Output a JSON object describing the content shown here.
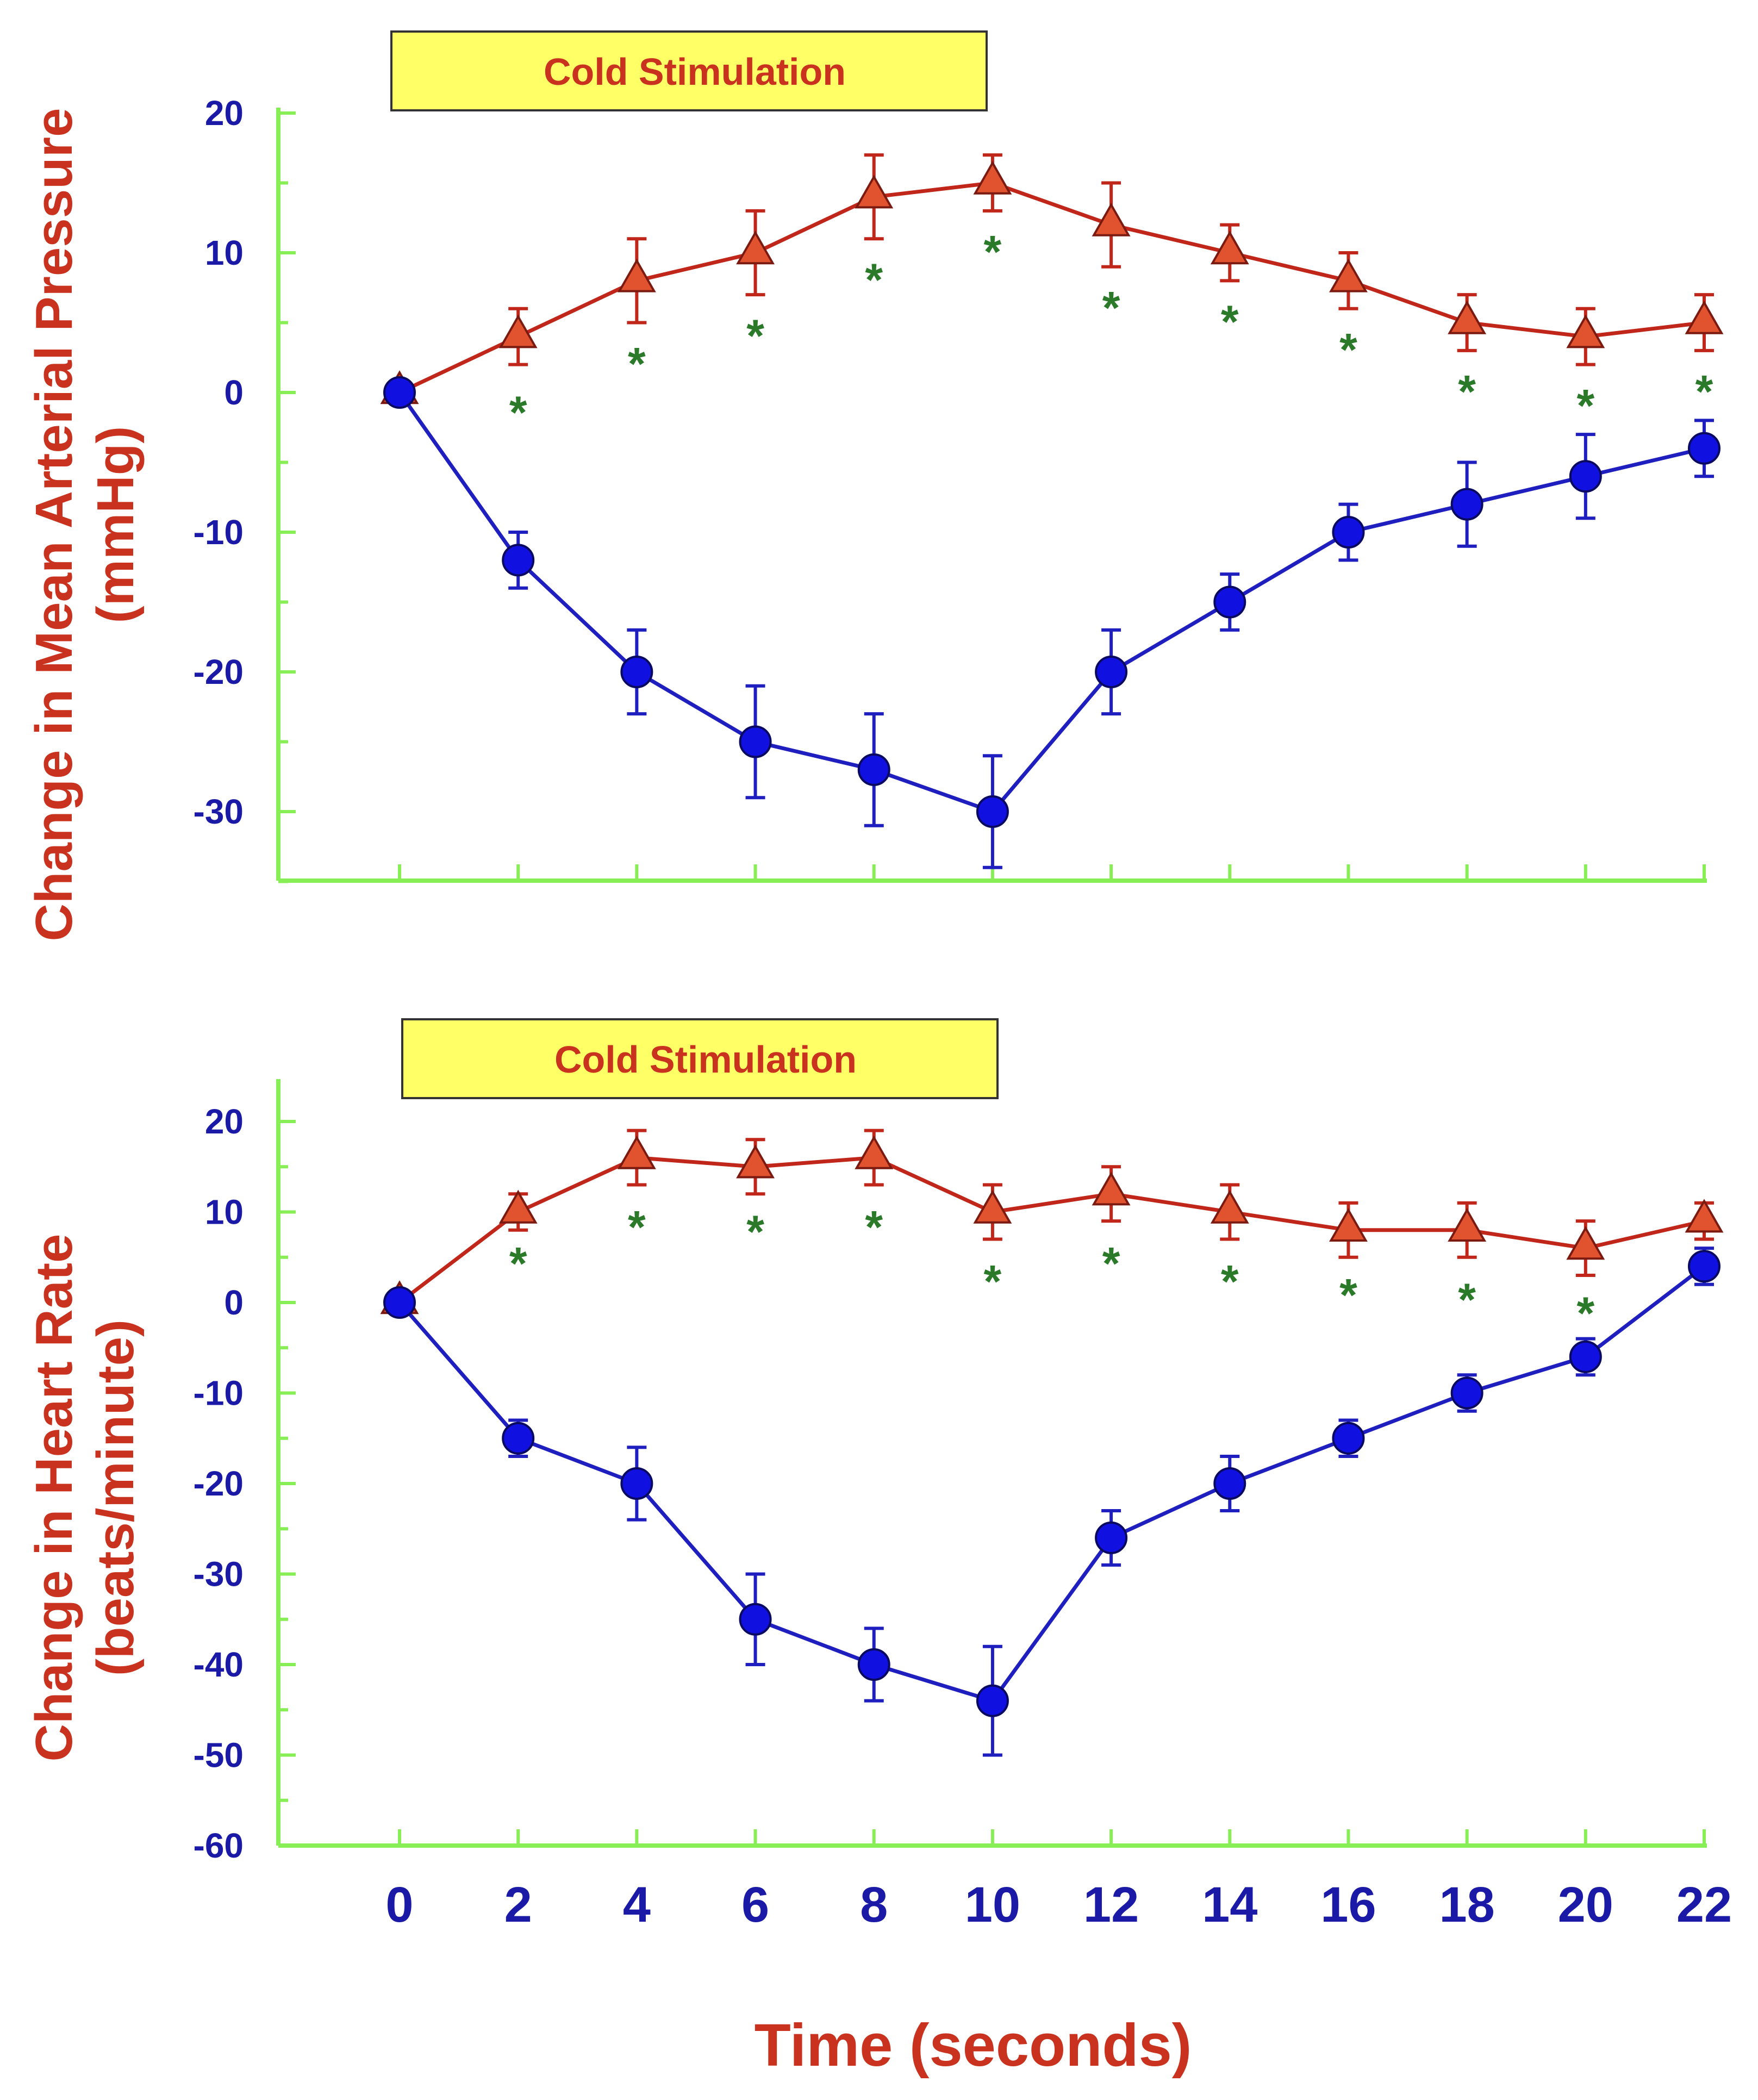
{
  "colors": {
    "axis": "#88ee55",
    "tick_label": "#1a1aa6",
    "y_title": "#c8321e",
    "x_title": "#c8321e",
    "triangle_line": "#c0261a",
    "triangle_fill": "#e0532e",
    "circle_line": "#1f1fbf",
    "circle_fill": "#1010e0",
    "asterisk": "#2a7a2a",
    "box_fill": "#ffff66",
    "box_text": "#c8321e"
  },
  "x_axis": {
    "title": "Time (seconds)",
    "ticks": [
      0,
      2,
      4,
      6,
      8,
      10,
      12,
      14,
      16,
      18,
      20,
      22
    ],
    "tick_labels": [
      "0",
      "2",
      "4",
      "6",
      "8",
      "10",
      "12",
      "14",
      "16",
      "18",
      "20",
      "22"
    ]
  },
  "chart_data": [
    {
      "type": "line",
      "title": "",
      "annotation": "Cold Stimulation",
      "ylabel_line1": "Change in Mean Arterial Pressure",
      "ylabel_line2": "(mmHg)",
      "xlabel": "Time (seconds)",
      "ylim": [
        -35,
        20
      ],
      "xlim": [
        -2,
        22
      ],
      "yticks": [
        20,
        10,
        0,
        -10,
        -20,
        -30
      ],
      "ytick_labels": [
        "20",
        "10",
        "0",
        "-10",
        "-20",
        "-30"
      ],
      "grid": false,
      "x": [
        0,
        2,
        4,
        6,
        8,
        10,
        12,
        14,
        16,
        18,
        20,
        22
      ],
      "series": [
        {
          "name": "triangle",
          "marker": "triangle",
          "values": [
            0,
            4,
            8,
            10,
            14,
            15,
            12,
            10,
            8,
            5,
            4,
            5
          ],
          "errors": [
            0,
            2,
            3,
            3,
            3,
            2,
            3,
            2,
            2,
            2,
            2,
            2
          ]
        },
        {
          "name": "circle",
          "marker": "circle",
          "values": [
            0,
            -12,
            -20,
            -25,
            -27,
            -30,
            -20,
            -15,
            -10,
            -8,
            -6,
            -4
          ],
          "errors": [
            0,
            2,
            3,
            4,
            4,
            4,
            3,
            2,
            2,
            3,
            3,
            2
          ]
        }
      ],
      "significance": {
        "symbol": "*",
        "x": [
          2,
          4,
          6,
          8,
          10,
          12,
          14,
          16,
          18,
          20,
          22
        ],
        "y": [
          -1,
          2.5,
          4.5,
          8.5,
          10.5,
          6.5,
          5.5,
          3.5,
          0.5,
          -0.5,
          0.5
        ]
      }
    },
    {
      "type": "line",
      "title": "",
      "annotation": "Cold Stimulation",
      "ylabel_line1": "Change in Heart Rate",
      "ylabel_line2": "(beats/minute)",
      "xlabel": "Time (seconds)",
      "ylim": [
        -60,
        25
      ],
      "xlim": [
        -2,
        22
      ],
      "yticks": [
        20,
        10,
        0,
        -10,
        -20,
        -30,
        -40,
        -50,
        -60
      ],
      "ytick_labels": [
        "20",
        "10",
        "0",
        "-10",
        "-20",
        "-30",
        "-40",
        "-50",
        "-60"
      ],
      "grid": false,
      "x": [
        0,
        2,
        4,
        6,
        8,
        10,
        12,
        14,
        16,
        18,
        20,
        22
      ],
      "series": [
        {
          "name": "triangle",
          "marker": "triangle",
          "values": [
            0,
            10,
            16,
            15,
            16,
            10,
            12,
            10,
            8,
            8,
            6,
            9
          ],
          "errors": [
            0,
            2,
            3,
            3,
            3,
            3,
            3,
            3,
            3,
            3,
            3,
            2
          ]
        },
        {
          "name": "circle",
          "marker": "circle",
          "values": [
            0,
            -15,
            -20,
            -35,
            -40,
            -44,
            -26,
            -20,
            -15,
            -10,
            -6,
            4
          ],
          "errors": [
            0,
            2,
            4,
            5,
            4,
            6,
            3,
            3,
            2,
            2,
            2,
            2
          ]
        }
      ],
      "significance": {
        "symbol": "*",
        "x": [
          2,
          4,
          6,
          8,
          10,
          12,
          14,
          16,
          18,
          20
        ],
        "y": [
          5,
          9,
          8.5,
          9,
          3,
          5,
          3,
          1.5,
          1,
          -0.5
        ]
      }
    }
  ]
}
